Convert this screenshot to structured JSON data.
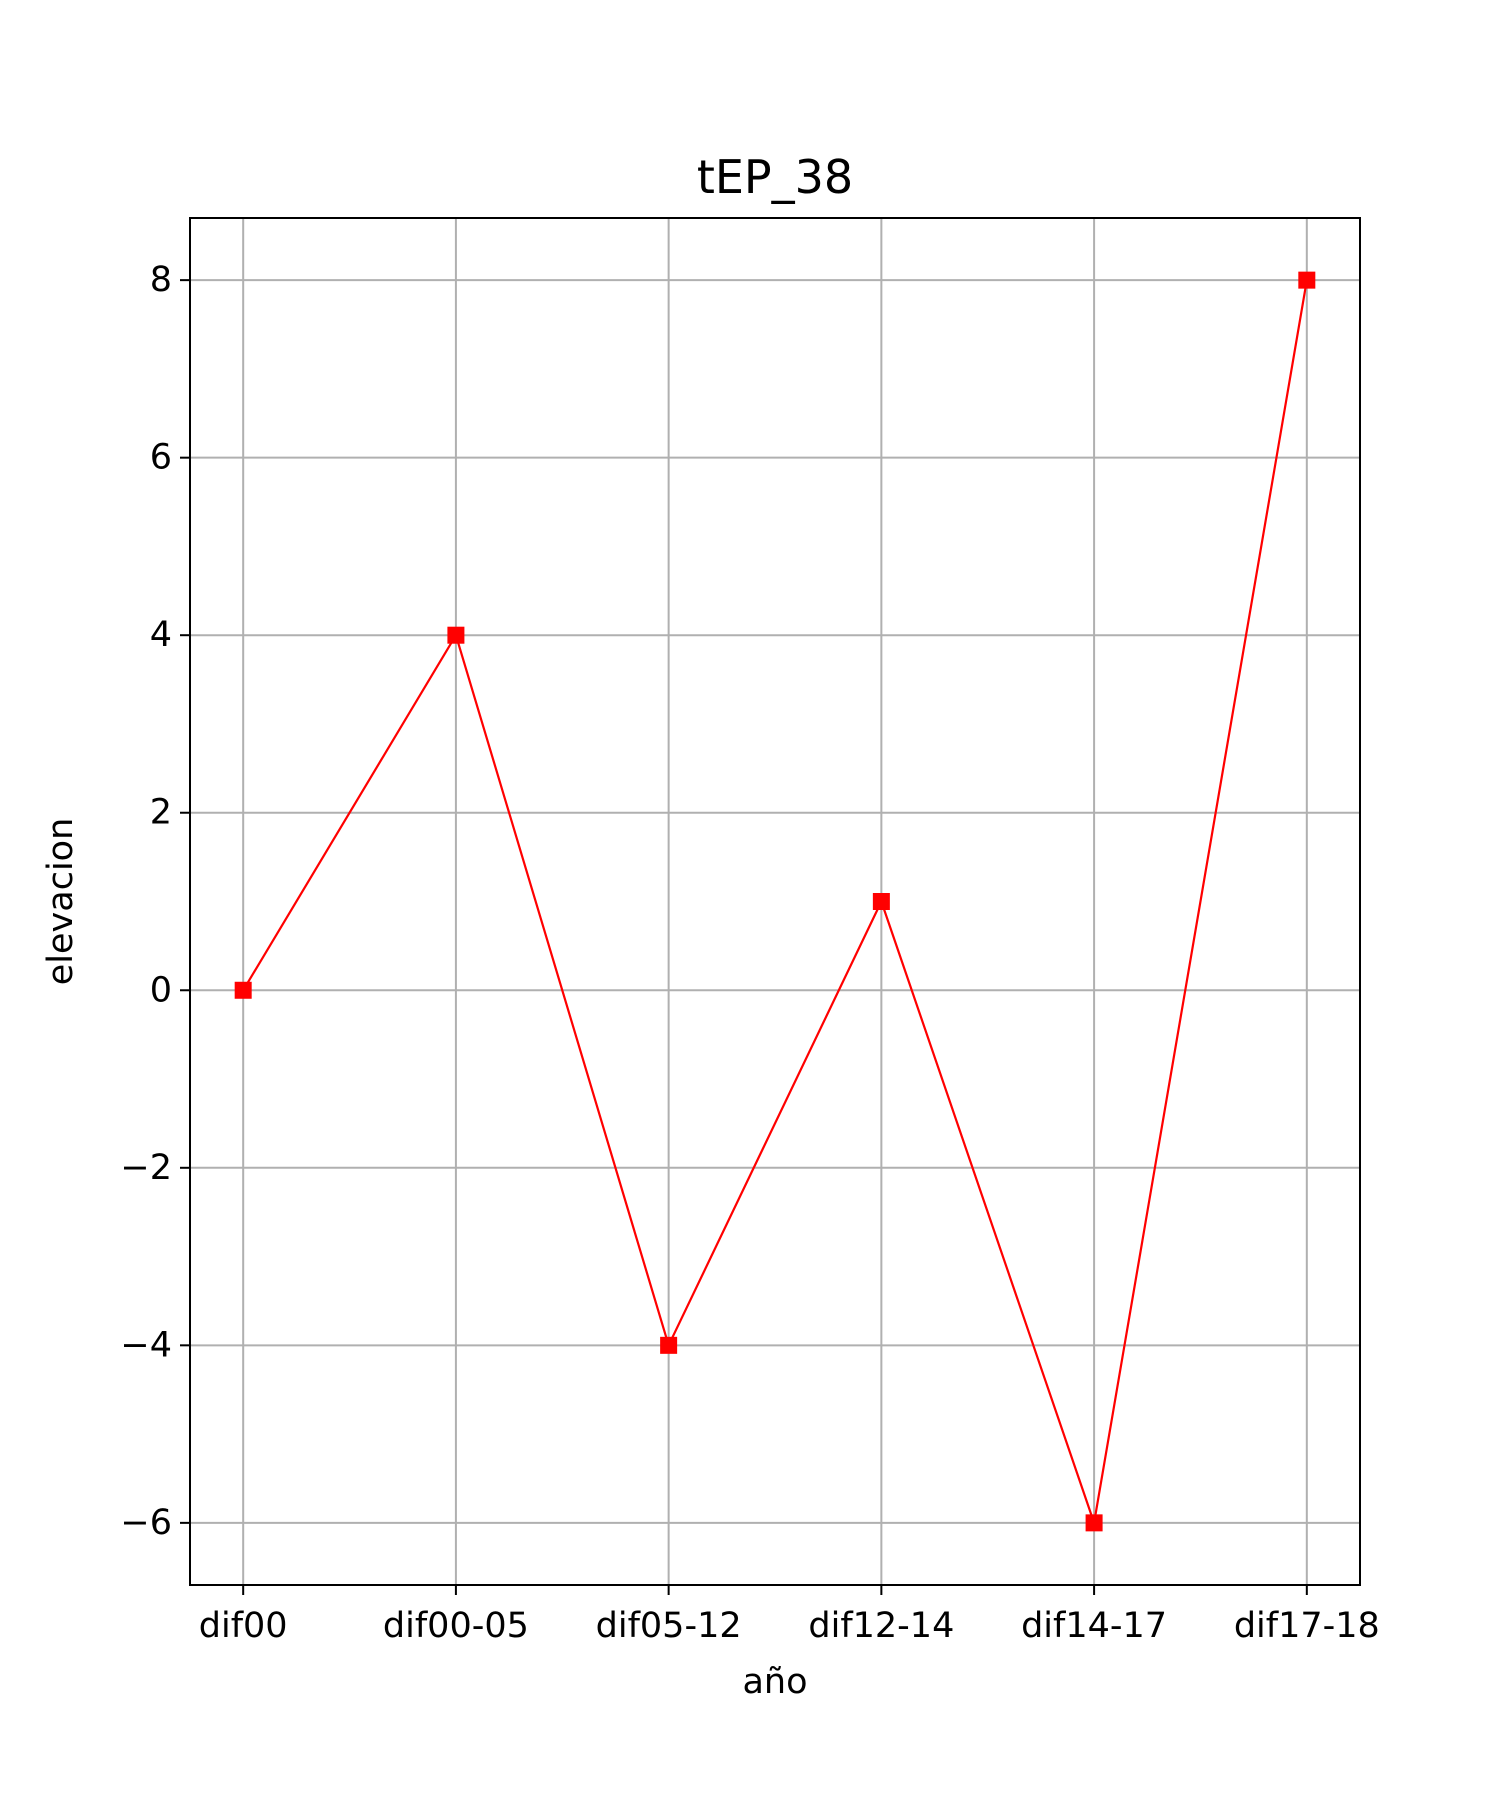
{
  "chart_data": {
    "type": "line",
    "title": "tEP_38",
    "xlabel": "año",
    "ylabel": "elevacion",
    "categories": [
      "dif00",
      "dif00-05",
      "dif05-12",
      "dif12-14",
      "dif14-17",
      "dif17-18"
    ],
    "series": [
      {
        "values": [
          0,
          4,
          -4,
          1,
          -6,
          8
        ],
        "color": "#ff0000",
        "marker": "square"
      }
    ],
    "ylim": [
      -6.7,
      8.7
    ],
    "yticks": [
      -6,
      -4,
      -2,
      0,
      2,
      4,
      6,
      8
    ],
    "ytick_labels": [
      "−6",
      "−4",
      "−2",
      "0",
      "2",
      "4",
      "6",
      "8"
    ],
    "grid": true,
    "grid_color": "#b0b0b0"
  }
}
